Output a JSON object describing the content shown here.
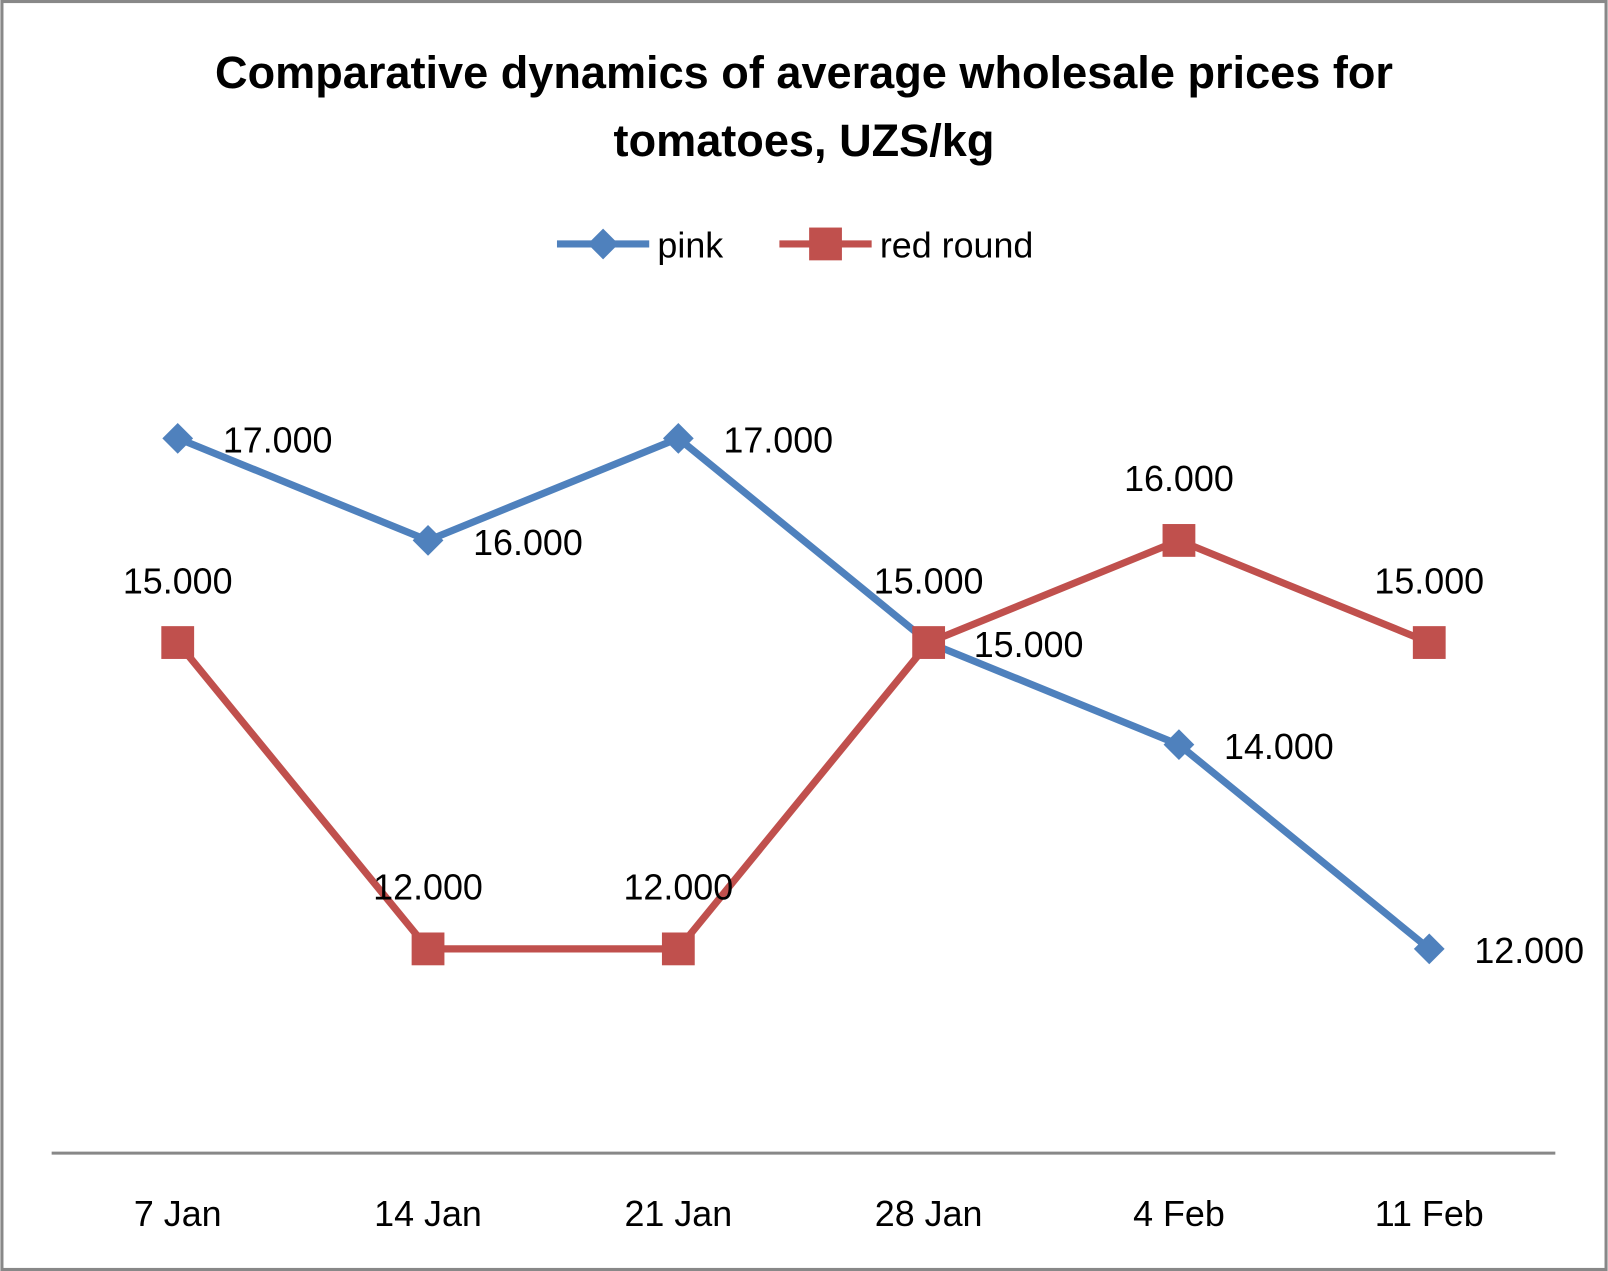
{
  "chart_data": {
    "type": "line",
    "title": [
      "Comparative dynamics of average wholesale prices for",
      "tomatoes, UZS/kg"
    ],
    "categories": [
      "7 Jan",
      "14 Jan",
      "21 Jan",
      "28 Jan",
      "4 Feb",
      "11 Feb"
    ],
    "series": [
      {
        "name": "pink",
        "color": "#4F81BD",
        "marker": "diamond",
        "values": [
          17,
          16,
          17,
          15,
          14,
          12
        ],
        "labels": [
          "17.000",
          "16.000",
          "17.000",
          "15.000",
          "14.000",
          "12.000"
        ]
      },
      {
        "name": "red round",
        "color": "#C0504D",
        "marker": "square",
        "values": [
          15,
          12,
          12,
          15,
          16,
          15
        ],
        "labels": [
          "15.000",
          "12.000",
          "12.000",
          "15.000",
          "16.000",
          "15.000"
        ]
      }
    ],
    "xlabel": "",
    "ylabel": "",
    "ylim": [
      10,
      18
    ],
    "grid": false,
    "y_axis_visible": false,
    "legend": "top"
  }
}
